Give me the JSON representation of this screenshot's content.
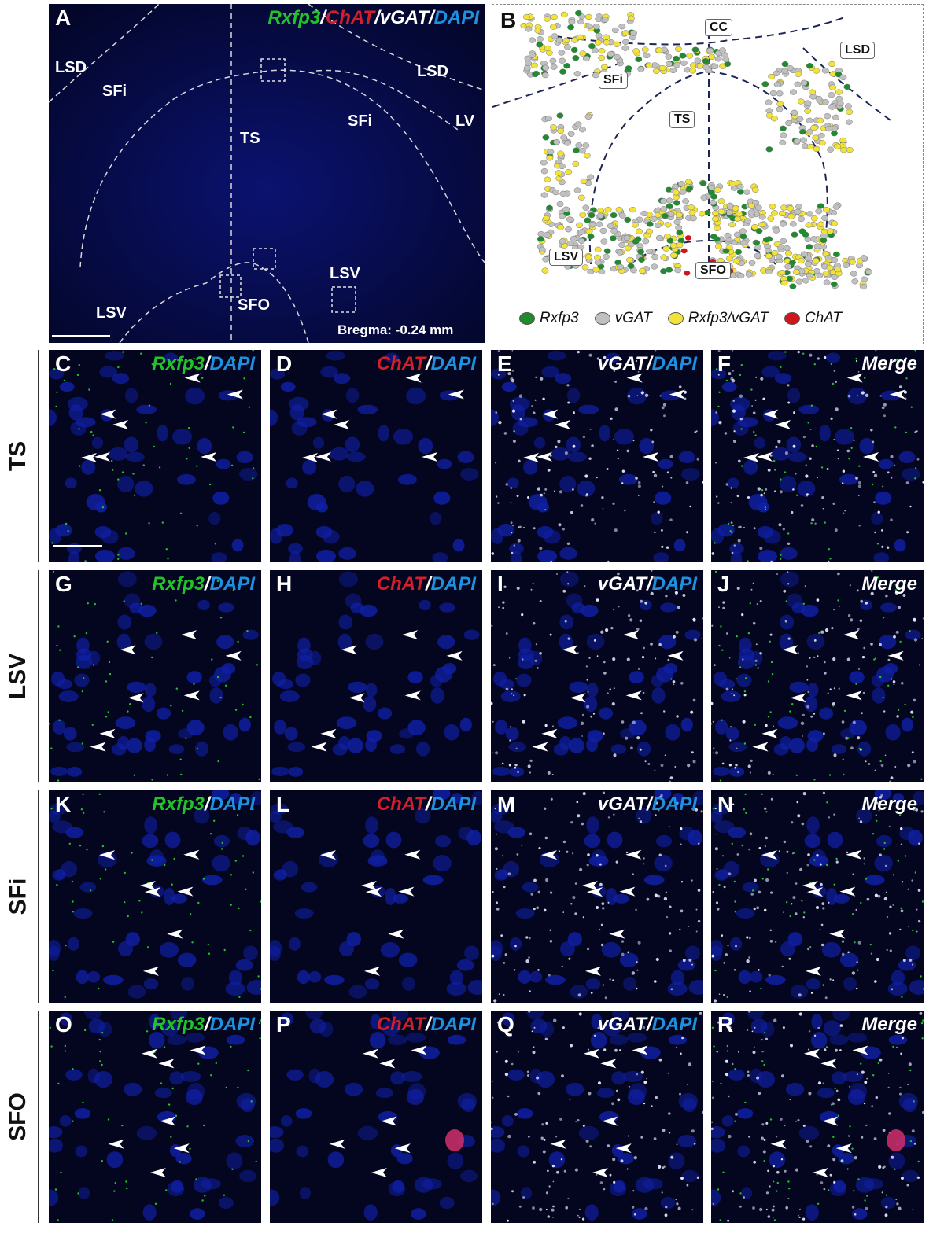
{
  "panel_a": {
    "letter": "A",
    "channels": [
      "Rxfp3",
      "/",
      "ChAT",
      "/vGAT/",
      "DAPI"
    ],
    "regions": [
      "LSD",
      "SFi",
      "TS",
      "SFi",
      "LSD",
      "LV",
      "LSV",
      "LSV",
      "SFO"
    ],
    "bregma": "Bregma: -0.24 mm"
  },
  "panel_b": {
    "letter": "B",
    "regions": [
      "CC",
      "LSD",
      "SFi",
      "TS",
      "LSV",
      "SFO"
    ],
    "legend": [
      "Rxfp3",
      "vGAT",
      "Rxfp3/vGAT",
      "ChAT"
    ]
  },
  "colors": {
    "rxfp3": "#22c32a",
    "chat": "#d21f2b",
    "vgat": "#ffffff",
    "dapi": "#1e90e0",
    "legend_rxfp3": "#1f8a2e",
    "legend_vgat": "#c0c0c0",
    "legend_coloc": "#f2e23a",
    "legend_chat": "#d0151c"
  },
  "rows": [
    {
      "label": "TS",
      "letters": [
        "C",
        "D",
        "E",
        "F"
      ]
    },
    {
      "label": "LSV",
      "letters": [
        "G",
        "H",
        "I",
        "J"
      ]
    },
    {
      "label": "SFi",
      "letters": [
        "K",
        "L",
        "M",
        "N"
      ]
    },
    {
      "label": "SFO",
      "letters": [
        "O",
        "P",
        "Q",
        "R"
      ]
    }
  ],
  "channel_labels": {
    "rxfp3": "Rxfp3",
    "chat": "ChAT",
    "vgat": "vGAT",
    "slash": "/",
    "dapi": "DAPI",
    "merge": "Merge"
  }
}
